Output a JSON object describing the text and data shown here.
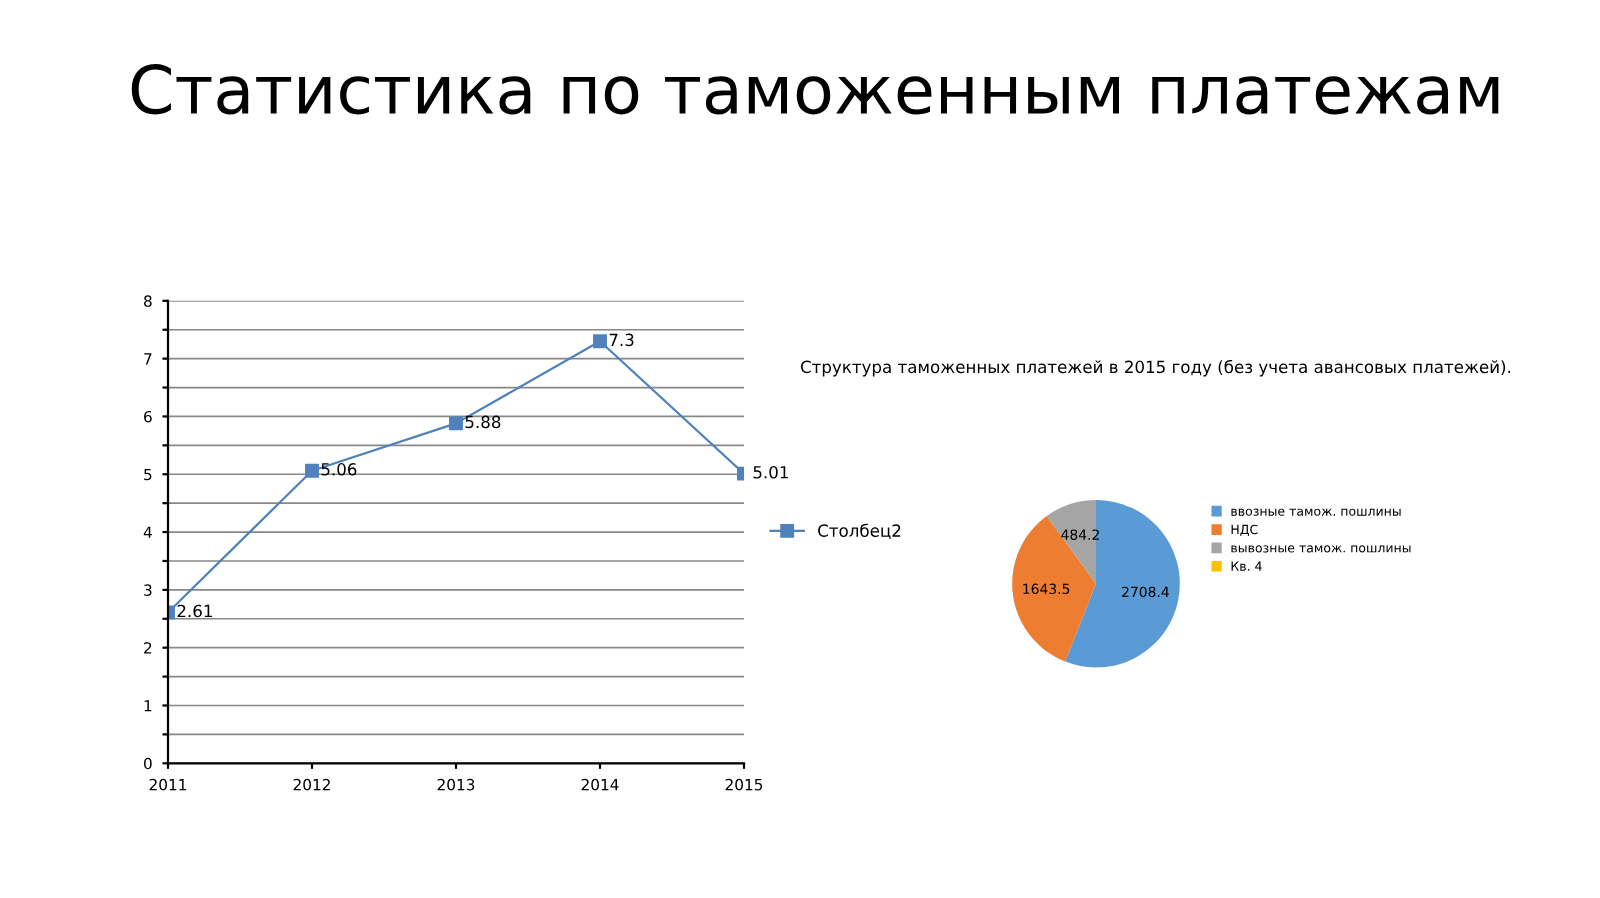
{
  "chart_data": [
    {
      "type": "line",
      "title": "Статистика по таможенным платежам",
      "x": [
        2011,
        2012,
        2013,
        2014,
        2015
      ],
      "xlim": [
        2011,
        2015
      ],
      "xticks": [
        2011,
        2012,
        2013,
        2014,
        2015
      ],
      "ylim": [
        0,
        8
      ],
      "yticks": [
        0,
        {
          "value": 0.5,
          "label": null
        },
        1,
        {
          "value": 1.5,
          "label": null
        },
        2,
        {
          "value": 2.5,
          "label": null
        },
        3,
        {
          "value": 3.5,
          "label": null
        },
        4,
        {
          "value": 4.5,
          "label": null
        },
        5,
        {
          "value": 5.5,
          "label": null
        },
        6,
        {
          "value": 6.5,
          "label": null
        },
        7,
        {
          "value": 7.5,
          "label": null
        },
        8
      ],
      "series": [
        {
          "name": "Столбец2",
          "color": "#4f81bd",
          "values": [
            2.61,
            5.06,
            5.88,
            7.3,
            5.01
          ]
        }
      ],
      "grid": "y",
      "legend": "right",
      "marker": "square",
      "line_style": "solid",
      "data_labels": true
    },
    {
      "type": "pie",
      "title": "Структура таможенных платежей в 2015 году (без учета авансовых платежей).",
      "categories": [
        "ввозные тамож. пошлины",
        "НДС",
        "вывозные тамож. пошлины",
        "Кв. 4"
      ],
      "values": [
        2708.4,
        1643.5,
        484.2,
        0
      ],
      "colors": [
        "#5b9bd5",
        "#ed7d31",
        "#a5a5a5",
        "#ffc000"
      ],
      "value_labels": [
        "2708.4",
        "1643.5",
        "484.2",
        null
      ],
      "legend": "right"
    }
  ]
}
